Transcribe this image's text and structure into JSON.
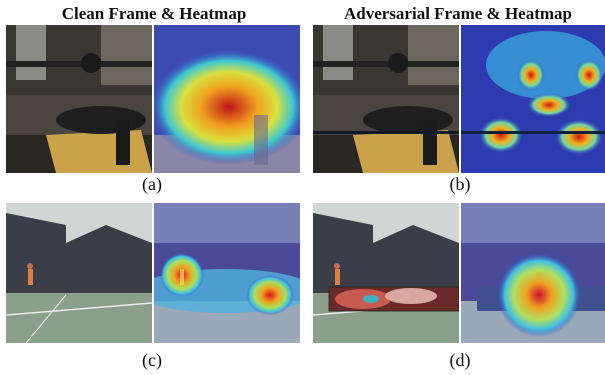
{
  "headers": {
    "clean": "Clean Frame & Heatmap",
    "adversarial": "Adversarial Frame & Heatmap"
  },
  "captions": [
    "(a)",
    "(b)",
    "(c)",
    "(d)"
  ]
}
